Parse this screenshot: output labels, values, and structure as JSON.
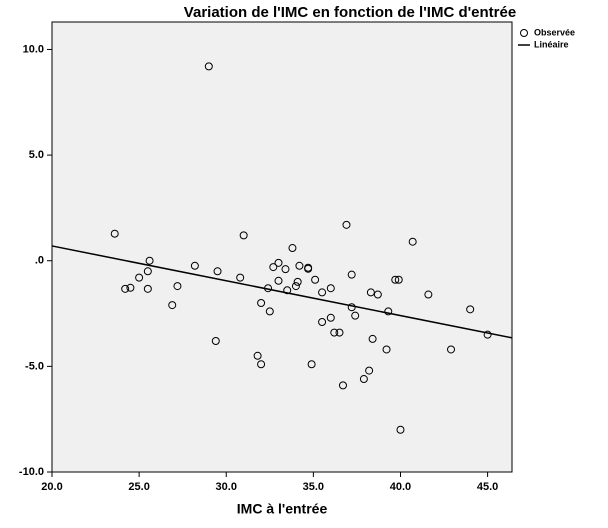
{
  "chart_data": {
    "type": "scatter",
    "title": "Variation de l'IMC en fonction de l'IMC d'entrée",
    "x_label": "IMC à l'entrée",
    "xlim": [
      20,
      46.4
    ],
    "ylim": [
      -10,
      11.3
    ],
    "xticks": [
      {
        "value": 20,
        "label": "20.0"
      },
      {
        "value": 25,
        "label": "25.0"
      },
      {
        "value": 30,
        "label": "30.0"
      },
      {
        "value": 35,
        "label": "35.0"
      },
      {
        "value": 40,
        "label": "40.0"
      },
      {
        "value": 45,
        "label": "45.0"
      }
    ],
    "yticks": [
      {
        "value": -10,
        "label": "-10.0"
      },
      {
        "value": -5,
        "label": "-5.0"
      },
      {
        "value": 0,
        "label": ".0"
      },
      {
        "value": 5,
        "label": "5.0"
      },
      {
        "value": 10,
        "label": "10.0"
      }
    ],
    "plot_background": "#f0f0f0",
    "series": [
      {
        "name": "Observée",
        "type": "scatter",
        "color": "#000000",
        "x": [
          23.6,
          24.2,
          24.5,
          25.0,
          25.6,
          25.5,
          25.5,
          26.9,
          27.2,
          28.2,
          29.0,
          29.5,
          29.4,
          31.0,
          30.8,
          31.8,
          32.0,
          32.0,
          32.4,
          32.5,
          32.7,
          33.0,
          33.0,
          33.4,
          33.5,
          33.8,
          34.0,
          34.1,
          34.2,
          34.7,
          34.7,
          35.1,
          34.9,
          35.5,
          35.5,
          36.0,
          36.0,
          36.2,
          36.5,
          36.7,
          36.9,
          37.2,
          37.2,
          37.4,
          37.9,
          38.2,
          38.3,
          38.4,
          38.7,
          39.2,
          39.3,
          39.7,
          39.9,
          40.0,
          40.7,
          41.6,
          42.9,
          44.0,
          45.0
        ],
        "values": [
          1.28,
          -1.33,
          -1.28,
          -0.8,
          0.0,
          -0.5,
          -1.33,
          -2.1,
          -1.2,
          -0.24,
          9.2,
          -0.5,
          -3.8,
          1.2,
          -0.8,
          -4.5,
          -4.9,
          -2.0,
          -1.3,
          -2.4,
          -0.3,
          -0.1,
          -0.95,
          -0.4,
          -1.4,
          0.6,
          -1.2,
          -1.0,
          -0.24,
          -0.33,
          -0.38,
          -0.9,
          -4.9,
          -2.9,
          -1.5,
          -1.3,
          -2.7,
          -3.4,
          -3.4,
          -5.9,
          1.7,
          -0.66,
          -2.2,
          -2.6,
          -5.6,
          -5.2,
          -1.5,
          -3.7,
          -1.6,
          -4.2,
          -2.4,
          -0.9,
          -0.9,
          -8.0,
          0.9,
          -1.6,
          -4.2,
          -2.3,
          -3.5
        ]
      },
      {
        "name": "Linéaire",
        "type": "line",
        "color": "#000000",
        "x": [
          20,
          46.4
        ],
        "values": [
          0.7,
          -3.65
        ]
      }
    ]
  }
}
